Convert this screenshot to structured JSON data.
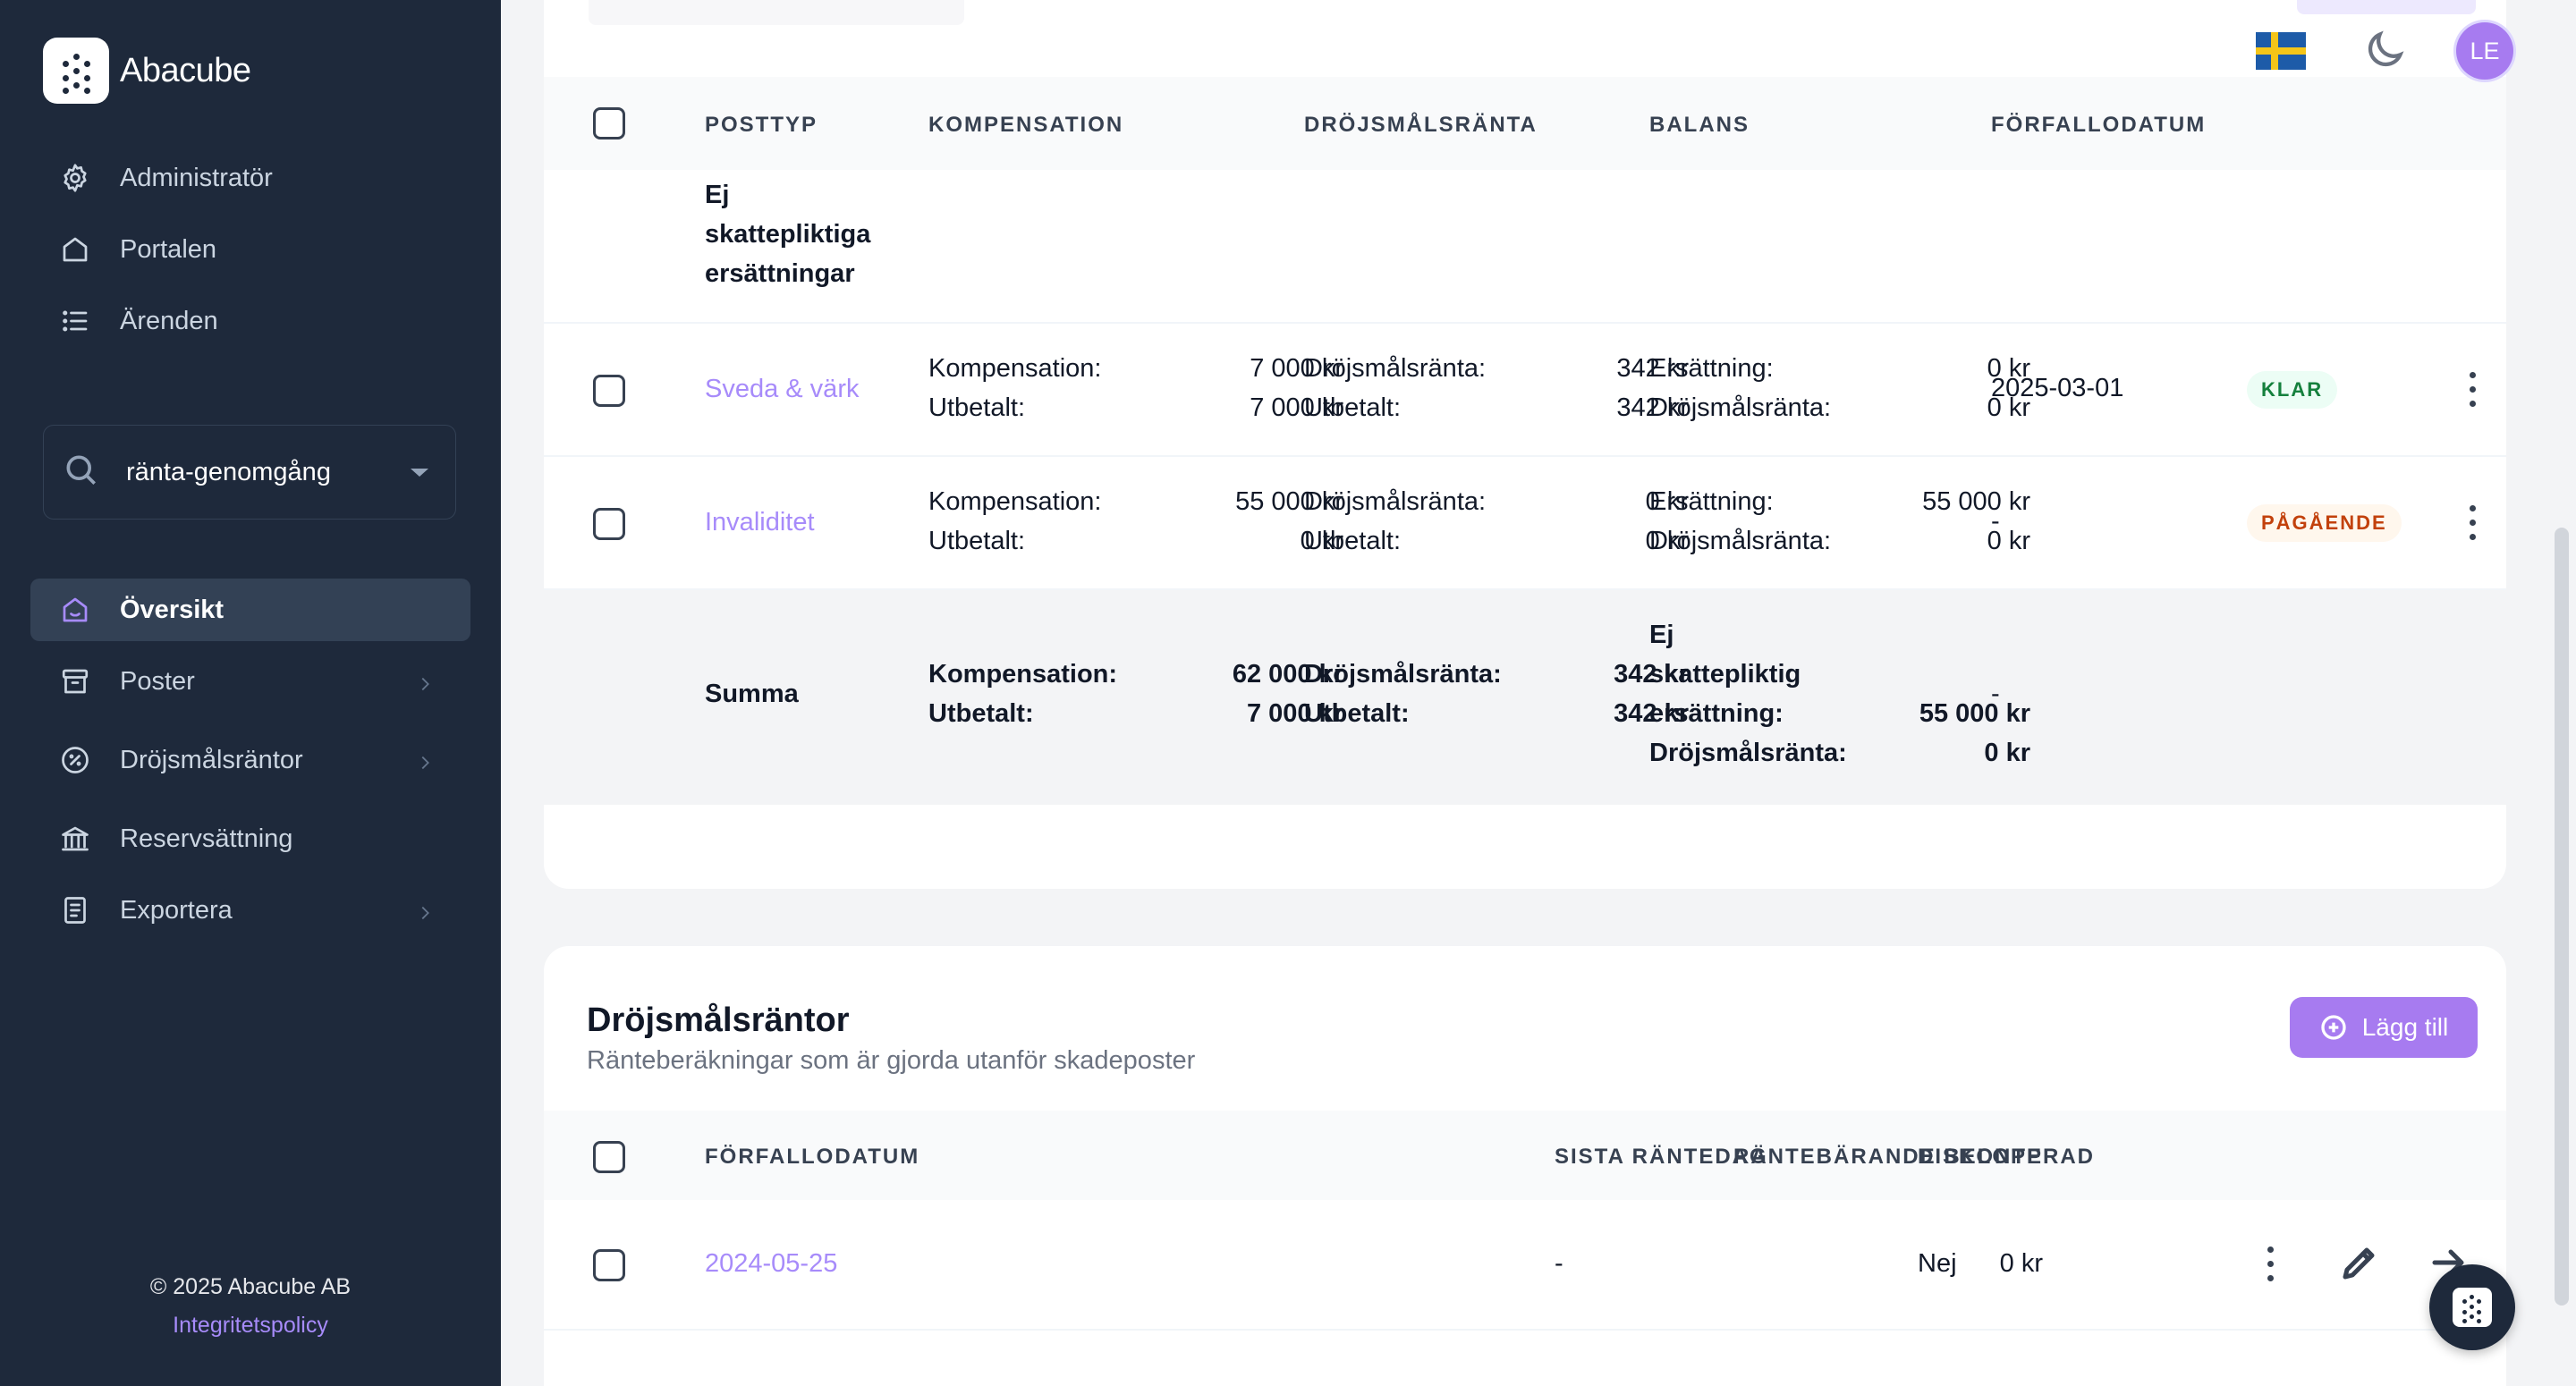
{
  "brand": {
    "name": "Abacube"
  },
  "sidebar": {
    "top_items": [
      {
        "label": "Administratör",
        "icon": "gear-icon"
      },
      {
        "label": "Portalen",
        "icon": "home-icon"
      },
      {
        "label": "Ärenden",
        "icon": "list-icon"
      }
    ],
    "case_selector": {
      "value": "ränta-genomgång",
      "icon": "search-icon"
    },
    "section_items": [
      {
        "label": "Översikt",
        "icon": "home-icon",
        "active": true
      },
      {
        "label": "Poster",
        "icon": "archive-icon",
        "has_submenu": true
      },
      {
        "label": "Dröjsmålsräntor",
        "icon": "percent-icon",
        "has_submenu": true
      },
      {
        "label": "Reservsättning",
        "icon": "bank-icon",
        "has_submenu": false
      },
      {
        "label": "Exportera",
        "icon": "document-icon",
        "has_submenu": true
      }
    ],
    "footer": {
      "copyright": "© 2025 Abacube AB",
      "privacy_link": "Integritetspolicy"
    }
  },
  "header": {
    "language_flag": "sweden-flag-icon",
    "theme_toggle": "moon-icon",
    "avatar_initials": "LE"
  },
  "posts_table": {
    "columns": [
      "POSTTYP",
      "KOMPENSATION",
      "DRÖJSMÅLSRÄNTA",
      "BALANS",
      "FÖRFALLODATUM"
    ],
    "group_label_lines": [
      "Ej",
      "skattepliktiga",
      "ersättningar"
    ],
    "rows": [
      {
        "posttyp": "Sveda & värk",
        "komp_labels": [
          "Kompensation:",
          "Utbetalt:"
        ],
        "komp_values": [
          "7 000 kr",
          "7 000 kr"
        ],
        "ranta_labels": [
          "Dröjsmålsränta:",
          "Utbetalt:"
        ],
        "ranta_values": [
          "342 kr",
          "342 kr"
        ],
        "balans_labels": [
          "Ersättning:",
          "Dröjsmålsränta:"
        ],
        "balans_values": [
          "0 kr",
          "0 kr"
        ],
        "forfallodatum": "2025-03-01",
        "status": "KLAR"
      },
      {
        "posttyp": "Invaliditet",
        "komp_labels": [
          "Kompensation:",
          "Utbetalt:"
        ],
        "komp_values": [
          "55 000 kr",
          "0 kr"
        ],
        "ranta_labels": [
          "Dröjsmålsränta:",
          "Utbetalt:"
        ],
        "ranta_values": [
          "0 kr",
          "0 kr"
        ],
        "balans_labels": [
          "Ersättning:",
          "Dröjsmålsränta:"
        ],
        "balans_values": [
          "55 000 kr",
          "0 kr"
        ],
        "forfallodatum": "-",
        "status": "PÅGÅENDE"
      }
    ],
    "summary": {
      "label": "Summa",
      "komp_labels": [
        "Kompensation:",
        "Utbetalt:"
      ],
      "komp_values": [
        "62 000 kr",
        "7 000 kr"
      ],
      "ranta_labels": [
        "Dröjsmålsränta:",
        "Utbetalt:"
      ],
      "ranta_values": [
        "342 kr",
        "342 kr"
      ],
      "balans_label_lines": [
        "Ej",
        "skattepliktig",
        "ersättning:",
        "Dröjsmålsränta:"
      ],
      "balans_values": [
        "55 000 kr",
        "0 kr"
      ],
      "forfallodatum": "-"
    }
  },
  "interest_section": {
    "title": "Dröjsmålsräntor",
    "subtitle": "Ränteberäkningar som är gjorda utanför skadeposter",
    "add_button": "Lägg till",
    "columns": [
      "FÖRFALLODATUM",
      "RÄNTEBÄRANDE BELOPP",
      "SISTA RÄNTEDAG",
      "DISKONTERAD"
    ],
    "rows": [
      {
        "forfallodatum": "2024-05-25",
        "belopp": "0 kr",
        "sista_rantedag": "-",
        "diskonterad": "Nej"
      }
    ]
  },
  "colors": {
    "sidebar_bg": "#1e293b",
    "accent": "#a77bf0",
    "link": "#a78bfa",
    "status_done": "#15803d",
    "status_progress": "#c2410c"
  }
}
